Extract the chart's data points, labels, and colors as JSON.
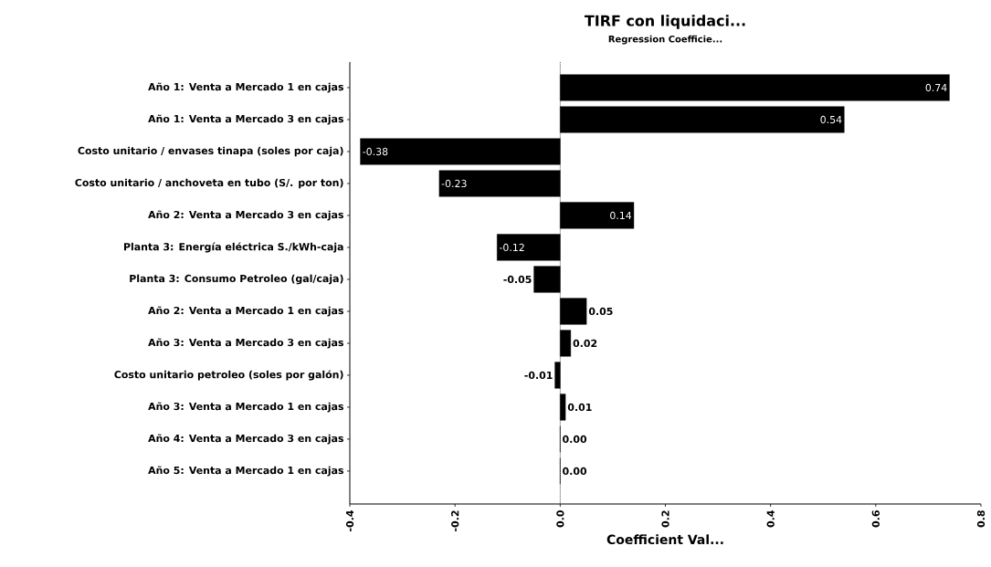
{
  "chart_data": {
    "type": "bar",
    "orientation": "horizontal",
    "title": "TIRF con liquidaci...",
    "subtitle": "Regression Coefficie...",
    "xlabel": "Coefficient Val...",
    "categories": [
      "Año 1: Venta a Mercado 1 en cajas",
      "Año 1: Venta a Mercado 3 en cajas",
      "Costo unitario / envases tinapa (soles por caja)",
      "Costo unitario / anchoveta en tubo (S/. por ton)",
      "Año 2: Venta a Mercado 3 en cajas",
      "Planta 3: Energía eléctrica S./kWh-caja",
      "Planta 3: Consumo Petroleo (gal/caja)",
      "Año 2: Venta a Mercado 1 en cajas",
      "Año 3: Venta a Mercado 3 en cajas",
      "Costo unitario petroleo (soles por galón)",
      "Año 3: Venta a Mercado 1 en cajas",
      "Año 4: Venta a Mercado 3 en cajas",
      "Año 5: Venta a Mercado 1 en cajas"
    ],
    "values": [
      0.74,
      0.54,
      -0.38,
      -0.23,
      0.14,
      -0.12,
      -0.05,
      0.05,
      0.02,
      -0.01,
      0.01,
      0.0,
      0.0
    ],
    "value_labels": [
      "0.74",
      "0.54",
      "-0.38",
      "-0.23",
      "0.14",
      "-0.12",
      "-0.05",
      "0.05",
      "0.02",
      "-0.01",
      "0.01",
      "0.00",
      "0.00"
    ],
    "color": "#000000",
    "xlim": [
      -0.4,
      0.8
    ],
    "xticks": [
      -0.4,
      -0.2,
      {
        "value": 0,
        "label": "0.0"
      },
      0.2,
      0.4,
      0.6,
      0.8
    ],
    "grid": false,
    "ref_lines": [
      {
        "axis": "x",
        "value": 0,
        "line_style": "dotted"
      }
    ]
  }
}
